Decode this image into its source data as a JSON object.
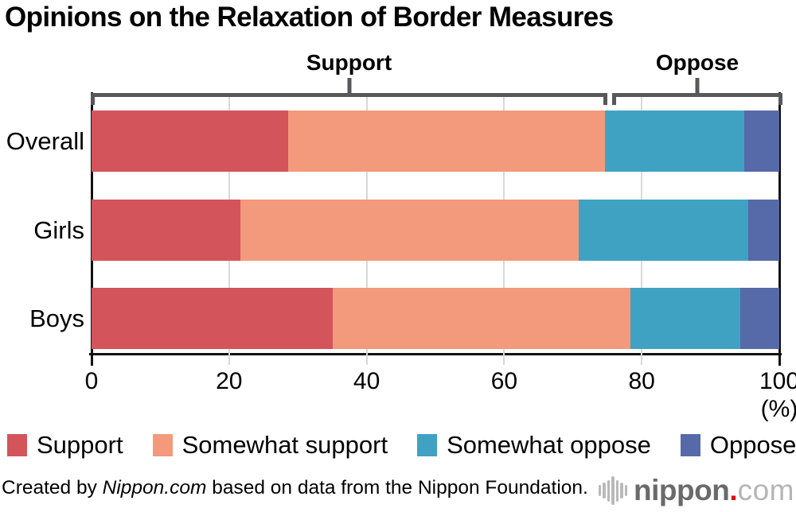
{
  "title": "Opinions on the Relaxation of Border Measures",
  "chart_data": {
    "type": "bar",
    "orientation": "horizontal",
    "stacked": true,
    "title": "Opinions on the Relaxation of Border Measures",
    "categories": [
      "Overall",
      "Girls",
      "Boys"
    ],
    "series": [
      {
        "name": "Support",
        "color": "#d4545b",
        "values": [
          28.6,
          21.6,
          35.1
        ]
      },
      {
        "name": "Somewhat support",
        "color": "#f29a7b",
        "values": [
          46.0,
          49.2,
          43.3
        ]
      },
      {
        "name": "Somewhat oppose",
        "color": "#40a2c3",
        "values": [
          20.3,
          24.7,
          15.9
        ]
      },
      {
        "name": "Oppose",
        "color": "#5669a8",
        "values": [
          5.1,
          4.5,
          5.7
        ]
      }
    ],
    "x_ticks": [
      0,
      20,
      40,
      60,
      80,
      100
    ],
    "xlim": [
      0,
      100
    ],
    "x_unit_label": "(%)",
    "grid": true,
    "legend_position": "bottom",
    "group_brackets": [
      {
        "label": "Support",
        "span": [
          0,
          75
        ]
      },
      {
        "label": "Oppose",
        "span": [
          75,
          100
        ]
      }
    ],
    "bracket_color": "#58585b",
    "gridline_color": "#d9d9d9",
    "axis_color": "#121212"
  },
  "footer": {
    "credit_prefix": "Created by ",
    "credit_source": "Nippon.com",
    "credit_suffix": " based on data from the Nippon Foundation.",
    "logo_name": "nippon",
    "logo_dot": ".",
    "logo_tld": "com"
  }
}
